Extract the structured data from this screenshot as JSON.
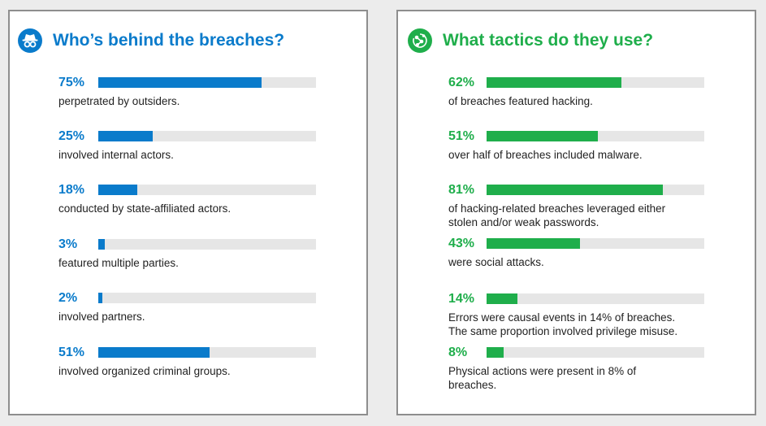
{
  "colors": {
    "blue": "#0a7bcb",
    "green": "#1fae4b",
    "track": "#e6e6e6"
  },
  "left_panel": {
    "title": "Who’s behind the breaches?",
    "icon": "spy-icon",
    "stats": [
      {
        "pct": "75%",
        "value": 75,
        "text": "perpetrated by outsiders."
      },
      {
        "pct": "25%",
        "value": 25,
        "text": "involved internal actors."
      },
      {
        "pct": "18%",
        "value": 18,
        "text": "conducted by state-affiliated actors."
      },
      {
        "pct": "3%",
        "value": 3,
        "text": "featured multiple parties."
      },
      {
        "pct": "2%",
        "value": 2,
        "text": "involved partners."
      },
      {
        "pct": "51%",
        "value": 51,
        "text": "involved organized criminal groups."
      }
    ]
  },
  "right_panel": {
    "title": "What tactics do they use?",
    "icon": "network-icon",
    "stats": [
      {
        "pct": "62%",
        "value": 62,
        "text": "of breaches featured hacking."
      },
      {
        "pct": "51%",
        "value": 51,
        "text": "over half of breaches included malware."
      },
      {
        "pct": "81%",
        "value": 81,
        "text": "of hacking-related breaches leveraged either\nstolen and/or weak passwords."
      },
      {
        "pct": "43%",
        "value": 43,
        "text": "were social attacks."
      },
      {
        "pct": "14%",
        "value": 14,
        "text": "Errors were causal events in 14% of breaches.\nThe same proportion involved privilege misuse."
      },
      {
        "pct": "8%",
        "value": 8,
        "text": "Physical actions were present in 8% of\nbreaches."
      }
    ]
  },
  "chart_data": [
    {
      "type": "bar",
      "title": "Who’s behind the breaches?",
      "categories": [
        "perpetrated by outsiders.",
        "involved internal actors.",
        "conducted by state-affiliated actors.",
        "featured multiple parties.",
        "involved partners.",
        "involved organized criminal groups."
      ],
      "values": [
        75,
        25,
        18,
        3,
        2,
        51
      ],
      "ylim": [
        0,
        100
      ],
      "color": "#0a7bcb"
    },
    {
      "type": "bar",
      "title": "What tactics do they use?",
      "categories": [
        "of breaches featured hacking.",
        "over half of breaches included malware.",
        "of hacking-related breaches leveraged either stolen and/or weak passwords.",
        "were social attacks.",
        "Errors were causal events in 14% of breaches. The same proportion involved privilege misuse.",
        "Physical actions were present in 8% of breaches."
      ],
      "values": [
        62,
        51,
        81,
        43,
        14,
        8
      ],
      "ylim": [
        0,
        100
      ],
      "color": "#1fae4b"
    }
  ]
}
